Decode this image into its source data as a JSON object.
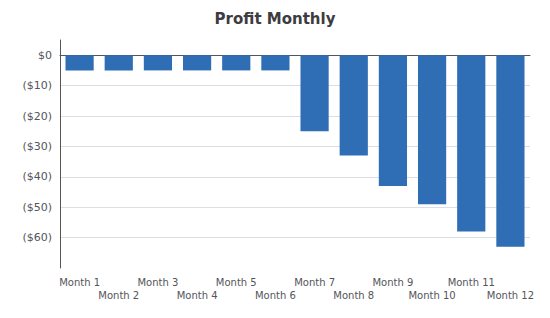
{
  "chart_data": {
    "type": "bar",
    "title": "Profit Monthly",
    "categories": [
      "Month 1",
      "Month 2",
      "Month 3",
      "Month 4",
      "Month 5",
      "Month 6",
      "Month 7",
      "Month 8",
      "Month 9",
      "Month 10",
      "Month 11",
      "Month 12"
    ],
    "values": [
      -5,
      -5,
      -5,
      -5,
      -5,
      -5,
      -25,
      -33,
      -43,
      -49,
      -58,
      -63
    ],
    "color": "#2F6DB5",
    "ylim": [
      -70,
      5
    ],
    "yticks": [
      {
        "value": 0,
        "label": "$0"
      },
      {
        "value": -10,
        "label": "($10)"
      },
      {
        "value": -20,
        "label": "($20)"
      },
      {
        "value": -30,
        "label": "($30)"
      },
      {
        "value": -40,
        "label": "($40)"
      },
      {
        "value": -50,
        "label": "($50)"
      },
      {
        "value": -60,
        "label": "($60)"
      }
    ],
    "grid": true
  }
}
